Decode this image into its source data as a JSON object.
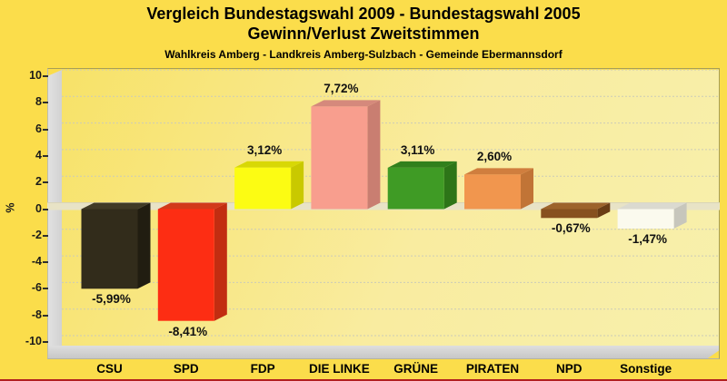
{
  "header": {
    "title_line1": "Vergleich Bundestagswahl 2009 - Bundestagswahl 2005",
    "title_line2": "Gewinn/Verlust Zweitstimmen",
    "subtitle": "Wahlkreis Amberg - Landkreis Amberg-Sulzbach - Gemeinde Ebermannsdorf"
  },
  "chart_data": {
    "type": "bar",
    "title": "Vergleich Bundestagswahl 2009 - Bundestagswahl 2005 Gewinn/Verlust Zweitstimmen",
    "subtitle": "Wahlkreis Amberg - Landkreis Amberg-Sulzbach - Gemeinde Ebermannsdorf",
    "ylabel": "%",
    "xlabel": "",
    "ylim": [
      -10,
      10
    ],
    "grid": true,
    "grid_style": "dashed",
    "y_ticks": [
      "10",
      "8",
      "6",
      "4",
      "2",
      "0",
      "-2",
      "-4",
      "-6",
      "-8",
      "-10"
    ],
    "y_tick_values": [
      10,
      8,
      6,
      4,
      2,
      0,
      -2,
      -4,
      -6,
      -8,
      -10
    ],
    "categories": [
      "CSU",
      "SPD",
      "FDP",
      "DIE LINKE",
      "GRÜNE",
      "PIRATEN",
      "NPD",
      "Sonstige"
    ],
    "values": [
      -5.99,
      -8.41,
      3.12,
      7.72,
      3.11,
      2.6,
      -0.67,
      -1.47
    ],
    "value_labels": [
      "-5,99%",
      "-8,41%",
      "3,12%",
      "7,72%",
      "3,11%",
      "2,60%",
      "-0,67%",
      "-1,47%"
    ],
    "bar_colors": [
      {
        "face": "#322C1B",
        "top": "#413B26",
        "side": "#211D11"
      },
      {
        "face": "#FD2D13",
        "top": "#D23A1A",
        "side": "#C22D11"
      },
      {
        "face": "#FCFC13",
        "top": "#D8D805",
        "side": "#C9C900"
      },
      {
        "face": "#F89E8E",
        "top": "#D5897C",
        "side": "#C97E71"
      },
      {
        "face": "#3F9B25",
        "top": "#31801C",
        "side": "#2D7518"
      },
      {
        "face": "#F1964E",
        "top": "#D07E3E",
        "side": "#C17436"
      },
      {
        "face": "#87511F",
        "top": "#9D632B",
        "side": "#6A3D15"
      },
      {
        "face": "#FBFAEE",
        "top": "#DBDAD0",
        "side": "#C7C6BC"
      }
    ],
    "colors": {
      "page_background": "#FBDD4B",
      "plot_background_top": "#F7E268",
      "plot_background_bottom": "#F7F0AC",
      "wall_gray": "#D7D7D7",
      "zero_plane": "#E8E3C6",
      "gridline": "#CBCBB8",
      "text": "#000000",
      "bottom_edge_line": "#B22020"
    },
    "style": "3d-bars",
    "legend": "none"
  }
}
